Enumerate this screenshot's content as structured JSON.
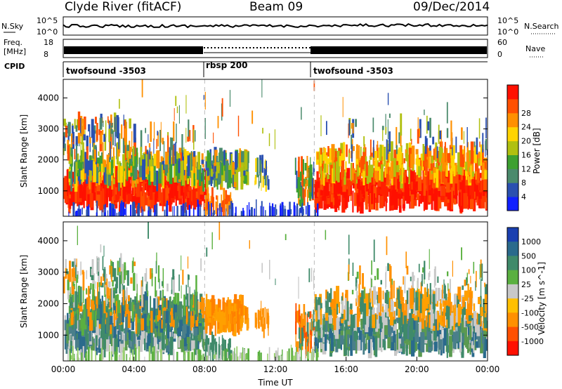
{
  "header": {
    "station": "Clyde River (fitACF)",
    "beam": "Beam 09",
    "date": "09/Dec/2014"
  },
  "status_panels": {
    "nsky_label": "N.Sky",
    "nsky_ticks": [
      "10^5",
      "10^0"
    ],
    "nsearch_label": "N.Search",
    "nsearch_ticks": [
      "10^5",
      "10^0"
    ],
    "freq_label_1": "Freq.",
    "freq_label_2": "[MHz]",
    "freq_ticks": [
      "18",
      "8"
    ],
    "nave_label": "Nave",
    "nave_ticks": [
      "60",
      "0"
    ],
    "cpid_label": "CPID",
    "cpid_segments": [
      {
        "name": "twofsound -3503",
        "start_hr": 0,
        "end_hr": 8
      },
      {
        "name": "rbsp 200",
        "start_hr": 8,
        "end_hr": 14
      },
      {
        "name": "twofsound -3503",
        "start_hr": 14,
        "end_hr": 24
      }
    ]
  },
  "chart_data": [
    {
      "type": "heatmap",
      "name": "power",
      "ylabel": "Slant Range [km]",
      "yticks": [
        "1000",
        "2000",
        "3000",
        "4000"
      ],
      "ylim": [
        180,
        4600
      ],
      "colorbar_label": "Power [dB]",
      "colorbar_ticks": [
        "4",
        "8",
        "12",
        "16",
        "20",
        "24",
        "28"
      ],
      "colorbar_colors": [
        "#1020ff",
        "#2a50b0",
        "#4a8a6c",
        "#3da030",
        "#b0c010",
        "#ffd400",
        "#ff9000",
        "#ff5000",
        "#ff1000"
      ],
      "echo_bands_hr_km": [
        {
          "x0": 0,
          "x1": 8,
          "y0": 700,
          "y1": 1500,
          "level": "high"
        },
        {
          "x0": 1.5,
          "x1": 8,
          "y0": 1300,
          "y1": 2000,
          "level": "mid"
        },
        {
          "x0": 8,
          "x1": 10.2,
          "y0": 1400,
          "y1": 2100,
          "level": "mid"
        },
        {
          "x0": 14.2,
          "x1": 24,
          "y0": 700,
          "y1": 1500,
          "level": "high"
        },
        {
          "x0": 15.5,
          "x1": 24,
          "y0": 1500,
          "y1": 2200,
          "level": "mid"
        }
      ]
    },
    {
      "type": "heatmap",
      "name": "velocity",
      "ylabel": "Slant Range [km]",
      "yticks": [
        "1000",
        "2000",
        "3000",
        "4000"
      ],
      "ylim": [
        180,
        4600
      ],
      "colorbar_label": "Velocity [m s^-1]",
      "colorbar_ticks": [
        "1000",
        "500",
        "100",
        "25",
        "-25",
        "-100",
        "-500",
        "-1000"
      ],
      "colorbar_colors": [
        "#1a3fb0",
        "#2a6a8c",
        "#3f8a6a",
        "#5ab040",
        "#c8c8c8",
        "#ffc000",
        "#ff9000",
        "#ff5000",
        "#ff1000"
      ],
      "xlabel": "Time UT",
      "xticks": [
        "00:00",
        "04:00",
        "08:00",
        "12:00",
        "16:00",
        "20:00",
        "00:00"
      ],
      "xlim_hr": [
        0,
        24
      ]
    }
  ]
}
